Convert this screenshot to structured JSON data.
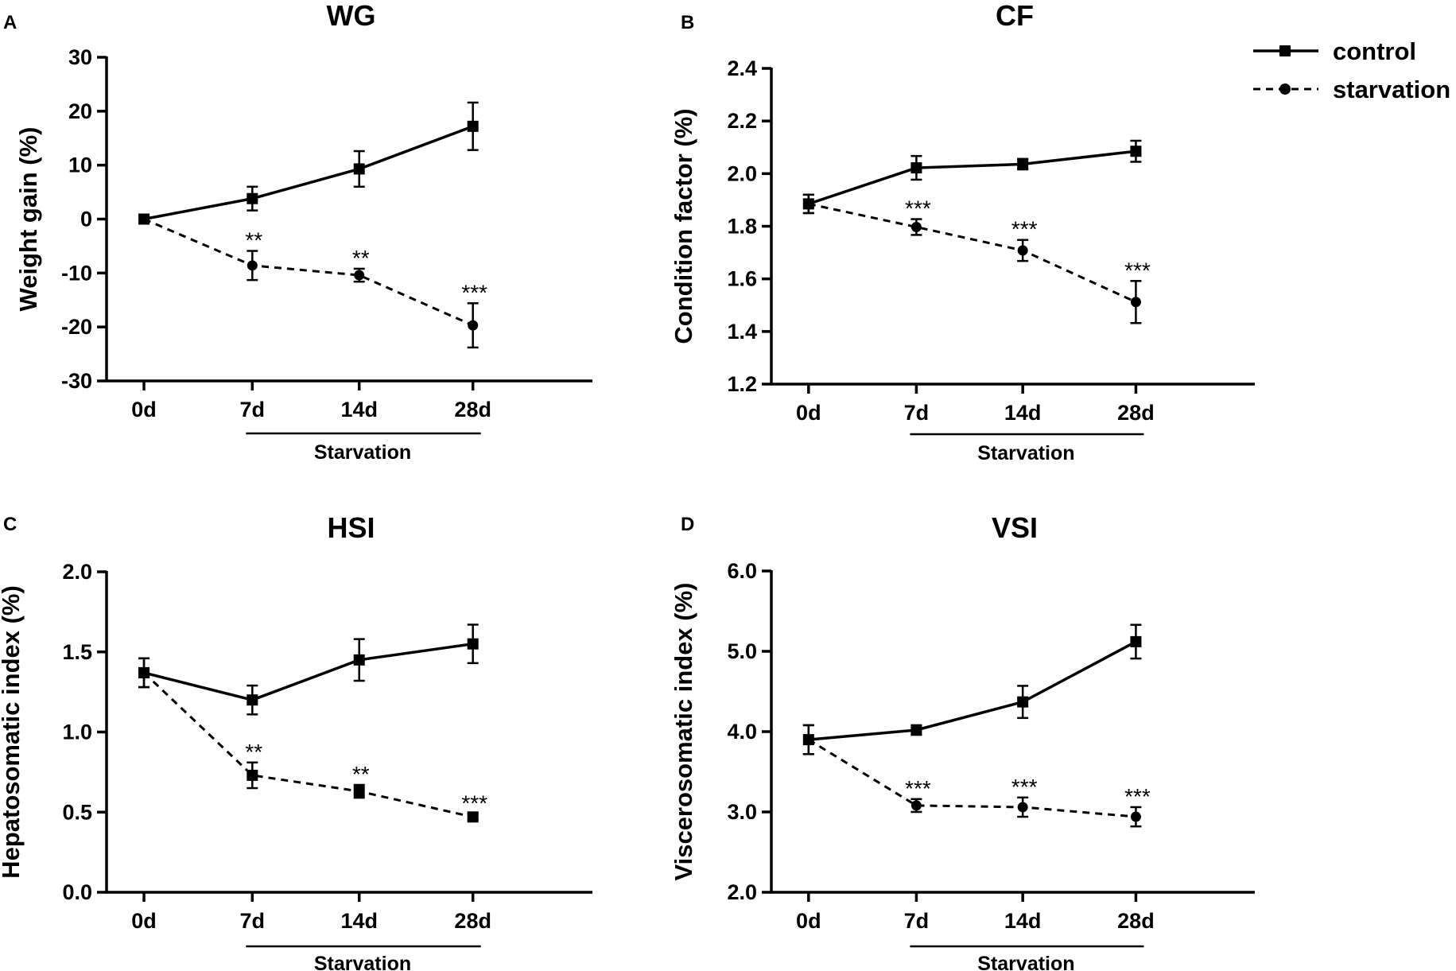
{
  "legend": {
    "control": "control",
    "starvation": "starvation"
  },
  "chart_data": [
    {
      "panel": "A",
      "type": "line",
      "title": "WG",
      "ylabel": "Weight gain (%)",
      "xlabel": "",
      "categories": [
        "0d",
        "7d",
        "14d",
        "28d"
      ],
      "ylim": [
        -30,
        30
      ],
      "yticks": [
        -30,
        -20,
        -10,
        0,
        10,
        20,
        30
      ],
      "ytick_labels": [
        "-30",
        "-20",
        "-10",
        "0",
        "10",
        "20",
        "30"
      ],
      "bracket_label": "Starvation",
      "series": [
        {
          "name": "control",
          "marker": "square",
          "dash": "solid",
          "values": [
            0,
            3.8,
            9.3,
            17.2
          ],
          "errors": [
            0,
            2.2,
            3.3,
            4.4
          ]
        },
        {
          "name": "starvation",
          "marker": "circle",
          "dash": "dashed",
          "values": [
            0,
            -8.6,
            -10.4,
            -19.7
          ],
          "errors": [
            0,
            2.7,
            1.2,
            4.1
          ]
        }
      ],
      "significance": [
        "",
        "**",
        "**",
        "***"
      ]
    },
    {
      "panel": "B",
      "type": "line",
      "title": "CF",
      "ylabel": "Condition factor (%)",
      "xlabel": "",
      "categories": [
        "0d",
        "7d",
        "14d",
        "28d"
      ],
      "ylim": [
        1.2,
        2.4
      ],
      "yticks": [
        1.2,
        1.4,
        1.6,
        1.8,
        2.0,
        2.2,
        2.4
      ],
      "ytick_labels": [
        "1.2",
        "1.4",
        "1.6",
        "1.8",
        "2.0",
        "2.2",
        "2.4"
      ],
      "bracket_label": "Starvation",
      "series": [
        {
          "name": "control",
          "marker": "square",
          "dash": "solid",
          "values": [
            1.885,
            2.022,
            2.036,
            2.085
          ],
          "errors": [
            0.035,
            0.045,
            0.02,
            0.04
          ]
        },
        {
          "name": "starvation",
          "marker": "circle",
          "dash": "dashed",
          "values": [
            1.885,
            1.797,
            1.708,
            1.512
          ],
          "errors": [
            0.035,
            0.03,
            0.04,
            0.08
          ]
        }
      ],
      "significance": [
        "",
        "***",
        "***",
        "***"
      ]
    },
    {
      "panel": "C",
      "type": "line",
      "title": "HSI",
      "ylabel": "Hepatosomatic index (%)",
      "xlabel": "",
      "categories": [
        "0d",
        "7d",
        "14d",
        "28d"
      ],
      "ylim": [
        0.0,
        2.0
      ],
      "yticks": [
        0.0,
        0.5,
        1.0,
        1.5,
        2.0
      ],
      "ytick_labels": [
        "0.0",
        "0.5",
        "1.0",
        "1.5",
        "2.0"
      ],
      "bracket_label": "Starvation",
      "series": [
        {
          "name": "control",
          "marker": "square",
          "dash": "solid",
          "values": [
            1.37,
            1.2,
            1.45,
            1.55
          ],
          "errors": [
            0.09,
            0.09,
            0.13,
            0.12
          ]
        },
        {
          "name": "starvation",
          "marker": "square",
          "dash": "dashed",
          "values": [
            1.37,
            0.73,
            0.63,
            0.47
          ],
          "errors": [
            0.09,
            0.08,
            0.04,
            0.02
          ]
        }
      ],
      "significance": [
        "",
        "**",
        "**",
        "***"
      ]
    },
    {
      "panel": "D",
      "type": "line",
      "title": "VSI",
      "ylabel": "Viscerosomatic index (%)",
      "xlabel": "",
      "categories": [
        "0d",
        "7d",
        "14d",
        "28d"
      ],
      "ylim": [
        2.0,
        6.0
      ],
      "yticks": [
        2.0,
        3.0,
        4.0,
        5.0,
        6.0
      ],
      "ytick_labels": [
        "2.0",
        "3.0",
        "4.0",
        "5.0",
        "6.0"
      ],
      "bracket_label": "Starvation",
      "series": [
        {
          "name": "control",
          "marker": "square",
          "dash": "solid",
          "values": [
            3.9,
            4.02,
            4.37,
            5.12
          ],
          "errors": [
            0.18,
            0.06,
            0.2,
            0.21
          ]
        },
        {
          "name": "starvation",
          "marker": "circle",
          "dash": "dashed",
          "values": [
            3.9,
            3.08,
            3.06,
            2.94
          ],
          "errors": [
            0.18,
            0.08,
            0.12,
            0.12
          ]
        }
      ],
      "significance": [
        "",
        "***",
        "***",
        "***"
      ]
    }
  ]
}
